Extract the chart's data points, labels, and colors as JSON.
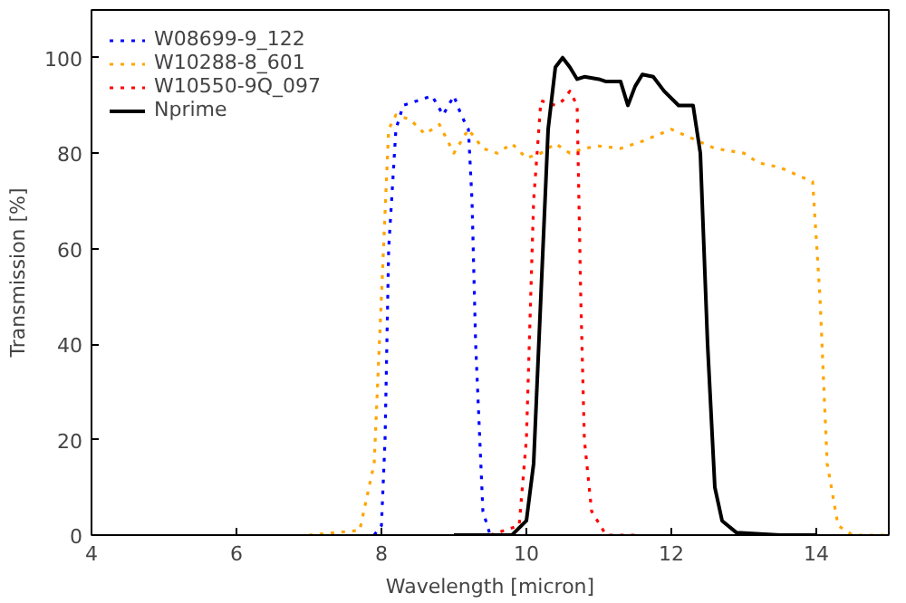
{
  "chart_data": {
    "type": "line",
    "xlabel": "Wavelength [micron]",
    "ylabel": "Transmission [%]",
    "xlim": [
      4,
      15
    ],
    "ylim": [
      0,
      110
    ],
    "xticks": [
      4,
      6,
      8,
      10,
      12,
      14
    ],
    "yticks": [
      0,
      20,
      40,
      60,
      80,
      100
    ],
    "grid": false,
    "legend": "top left",
    "series": [
      {
        "name": "W08699-9_122",
        "color": "#0000ff",
        "line_style": "dotted",
        "x": [
          7.9,
          8.0,
          8.05,
          8.1,
          8.2,
          8.3,
          8.5,
          8.7,
          8.85,
          9.0,
          9.1,
          9.2,
          9.25,
          9.3,
          9.4,
          9.5,
          9.8
        ],
        "values": [
          0,
          2,
          20,
          60,
          85,
          90,
          91,
          92,
          88,
          92,
          88,
          85,
          70,
          40,
          5,
          0,
          0
        ]
      },
      {
        "name": "W10288-8_601",
        "color": "#ffa500",
        "line_style": "dotted",
        "x": [
          7.0,
          7.7,
          7.9,
          8.0,
          8.1,
          8.2,
          8.4,
          8.6,
          8.8,
          9.0,
          9.2,
          9.4,
          9.6,
          9.8,
          10.0,
          10.2,
          10.4,
          10.6,
          10.8,
          11.0,
          11.3,
          11.6,
          12.0,
          12.3,
          12.6,
          13.0,
          13.2,
          13.5,
          13.8,
          13.95,
          14.05,
          14.15,
          14.3,
          14.5,
          15.0
        ],
        "values": [
          0,
          1,
          15,
          50,
          85,
          88,
          87,
          84,
          86,
          80,
          85,
          81,
          80,
          82,
          79,
          80,
          82,
          80,
          81,
          81.5,
          81,
          82.5,
          85,
          83,
          81,
          80,
          78,
          77,
          75,
          74,
          50,
          15,
          2,
          0,
          0
        ]
      },
      {
        "name": "W10550-9Q_097",
        "color": "#ff0000",
        "line_style": "dotted",
        "x": [
          9.5,
          9.9,
          10.0,
          10.1,
          10.2,
          10.4,
          10.5,
          10.6,
          10.7,
          10.75,
          10.8,
          10.9,
          11.1,
          11.5
        ],
        "values": [
          0,
          2,
          20,
          70,
          91,
          90,
          91,
          93,
          90,
          50,
          20,
          5,
          0,
          0
        ]
      },
      {
        "name": "Nprime",
        "color": "#000000",
        "line_style": "solid",
        "x": [
          9.0,
          9.8,
          10.0,
          10.1,
          10.2,
          10.3,
          10.4,
          10.5,
          10.6,
          10.7,
          10.8,
          11.0,
          11.1,
          11.3,
          11.4,
          11.5,
          11.6,
          11.75,
          11.9,
          12.1,
          12.3,
          12.4,
          12.5,
          12.6,
          12.7,
          12.9,
          13.5,
          14.0
        ],
        "values": [
          0,
          0,
          3,
          15,
          50,
          85,
          98,
          100,
          98,
          95.5,
          96,
          95.5,
          95,
          95,
          90,
          94,
          96.5,
          96,
          93,
          90,
          90,
          80,
          40,
          10,
          3,
          0.5,
          0,
          0
        ]
      }
    ]
  }
}
